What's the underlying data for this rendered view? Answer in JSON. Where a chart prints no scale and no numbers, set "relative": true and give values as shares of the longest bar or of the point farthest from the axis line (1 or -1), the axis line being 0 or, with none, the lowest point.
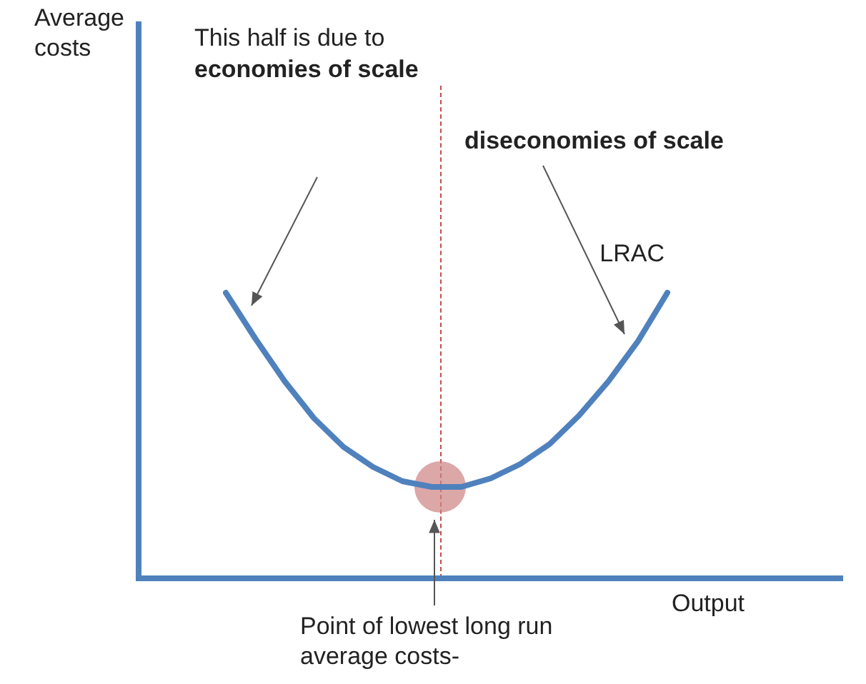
{
  "chart_data": {
    "type": "line",
    "relative": true,
    "xlabel": "Output",
    "legend": false,
    "grid": false,
    "marker": "none",
    "line_style": "solid",
    "categories": [
      null,
      null,
      null,
      null,
      null,
      null,
      null,
      null,
      null,
      null,
      null,
      null,
      null,
      null,
      null,
      null
    ],
    "series": [
      {
        "name": "LRAC",
        "color": "#4f81bd",
        "values": [
          1,
          0.84,
          0.69,
          0.56,
          0.46,
          0.39,
          0.34,
          0.32,
          0.32,
          0.35,
          0.4,
          0.47,
          0.57,
          0.69,
          0.83,
          1
        ]
      }
    ],
    "annotations": [
      "Average costs",
      "This half is due to",
      "economies of scale",
      "diseconomies of scale",
      "Point of lowest long run average costs-"
    ]
  }
}
